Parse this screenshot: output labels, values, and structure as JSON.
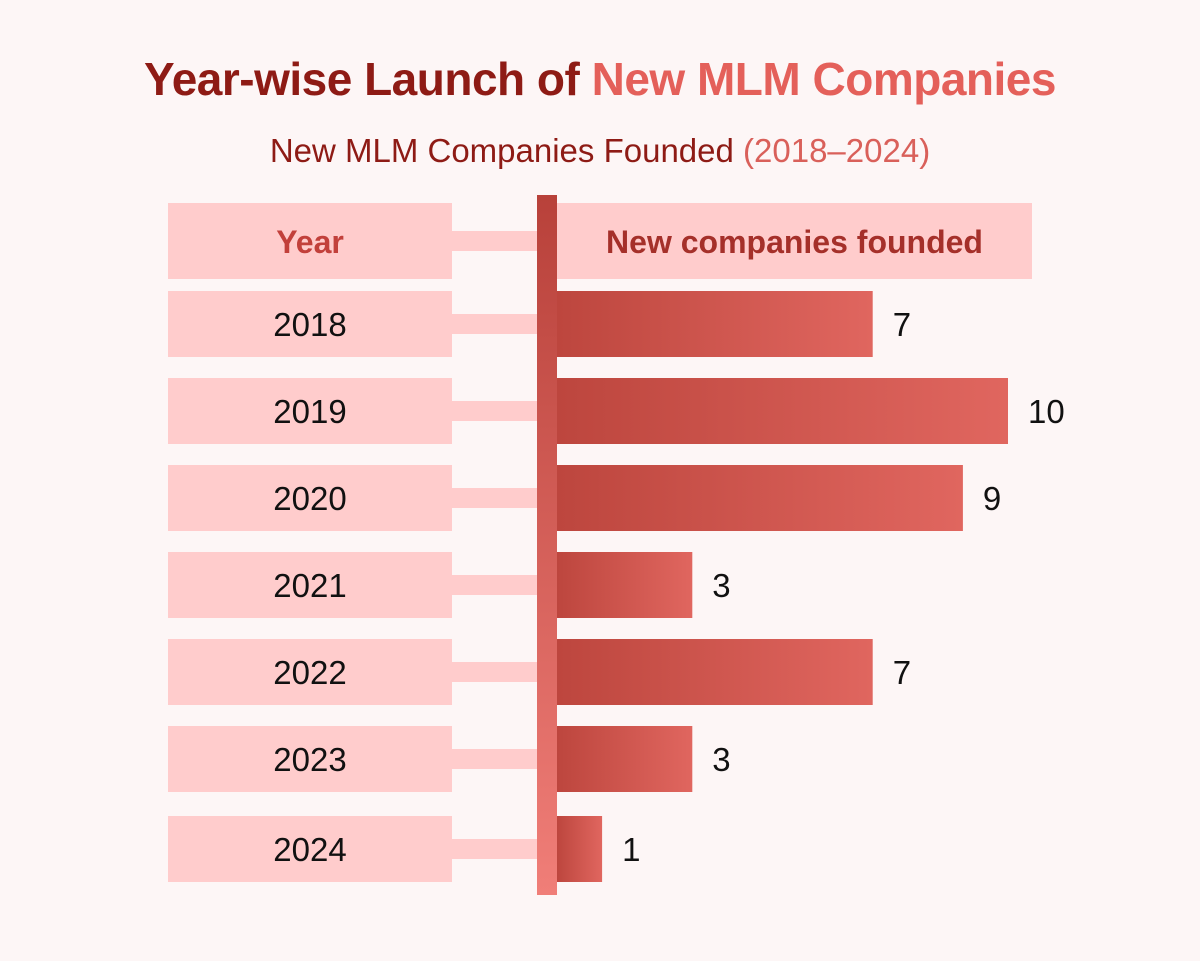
{
  "title": {
    "part1": "Year-wise Launch of ",
    "part2": "New MLM Companies"
  },
  "subtitle": {
    "part1": "New MLM Companies Founded ",
    "part2": "(2018–2024)"
  },
  "chart_data": {
    "type": "bar",
    "orientation": "horizontal",
    "title": "Year-wise Launch of New MLM Companies",
    "subtitle": "New MLM Companies Founded (2018–2024)",
    "category_header": "Year",
    "value_header": "New companies founded",
    "categories": [
      "2018",
      "2019",
      "2020",
      "2021",
      "2022",
      "2023",
      "2024"
    ],
    "values": [
      7,
      10,
      9,
      3,
      7,
      3,
      1
    ],
    "xlim": [
      0,
      10
    ],
    "grid": false,
    "legend": "none"
  },
  "colors": {
    "label_box": "#ffcccc",
    "bar_start": "#bd463e",
    "bar_end": "#e0665f",
    "axis_top": "#b8413a",
    "axis_bottom": "#f07e78",
    "header_text": "#c2403b",
    "value_header_text": "#a5302a",
    "text": "#111111"
  }
}
